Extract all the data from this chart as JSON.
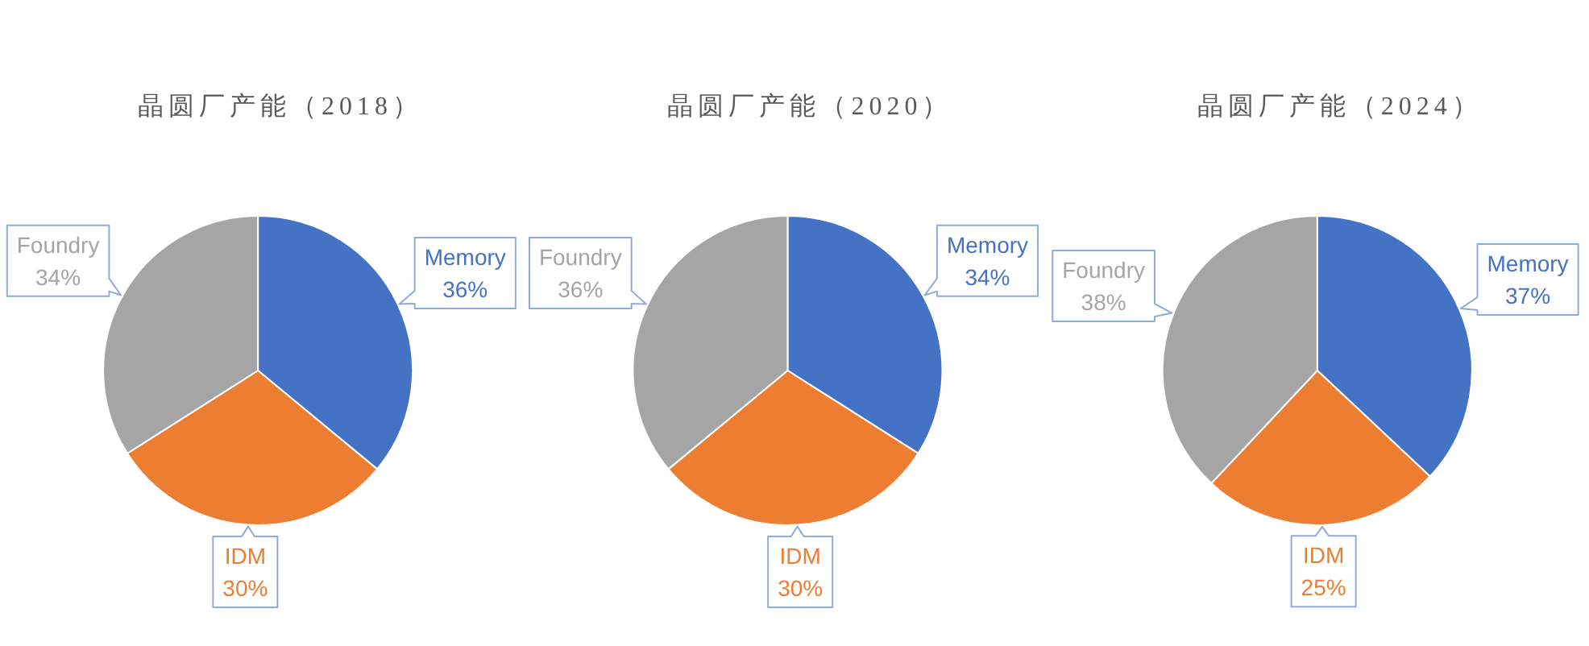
{
  "chart_data": [
    {
      "type": "pie",
      "title": "晶圆厂产能（2018）",
      "categories": [
        "Memory",
        "IDM",
        "Foundry"
      ],
      "values": [
        36,
        30,
        34
      ],
      "colors": [
        "#4472c4",
        "#ed7d31",
        "#a5a5a5"
      ],
      "value_labels": [
        "36%",
        "30%",
        "34%"
      ]
    },
    {
      "type": "pie",
      "title": "晶圆厂产能（2020）",
      "categories": [
        "Memory",
        "IDM",
        "Foundry"
      ],
      "values": [
        34,
        30,
        36
      ],
      "colors": [
        "#4472c4",
        "#ed7d31",
        "#a5a5a5"
      ],
      "value_labels": [
        "34%",
        "30%",
        "36%"
      ]
    },
    {
      "type": "pie",
      "title": "晶圆厂产能（2024）",
      "categories": [
        "Memory",
        "IDM",
        "Foundry"
      ],
      "values": [
        37,
        25,
        38
      ],
      "colors": [
        "#4472c4",
        "#ed7d31",
        "#a5a5a5"
      ],
      "value_labels": [
        "37%",
        "25%",
        "38%"
      ]
    }
  ]
}
